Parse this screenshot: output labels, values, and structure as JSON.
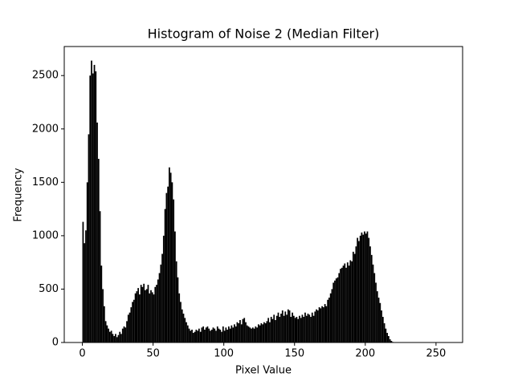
{
  "chart_data": {
    "type": "histogram",
    "title": "Histogram of Noise 2 (Median Filter)",
    "xlabel": "Pixel Value",
    "ylabel": "Frequency",
    "color": "#000000",
    "bins": [
      0,
      1,
      2,
      3,
      4,
      5,
      6,
      7,
      8,
      9,
      10,
      11,
      12,
      13,
      14,
      15,
      16,
      17,
      18,
      19,
      20,
      21,
      22,
      23,
      24,
      25,
      26,
      27,
      28,
      29,
      30,
      31,
      32,
      33,
      34,
      35,
      36,
      37,
      38,
      39,
      40,
      41,
      42,
      43,
      44,
      45,
      46,
      47,
      48,
      49,
      50,
      51,
      52,
      53,
      54,
      55,
      56,
      57,
      58,
      59,
      60,
      61,
      62,
      63,
      64,
      65,
      66,
      67,
      68,
      69,
      70,
      71,
      72,
      73,
      74,
      75,
      76,
      77,
      78,
      79,
      80,
      81,
      82,
      83,
      84,
      85,
      86,
      87,
      88,
      89,
      90,
      91,
      92,
      93,
      94,
      95,
      96,
      97,
      98,
      99,
      100,
      101,
      102,
      103,
      104,
      105,
      106,
      107,
      108,
      109,
      110,
      111,
      112,
      113,
      114,
      115,
      116,
      117,
      118,
      119,
      120,
      121,
      122,
      123,
      124,
      125,
      126,
      127,
      128,
      129,
      130,
      131,
      132,
      133,
      134,
      135,
      136,
      137,
      138,
      139,
      140,
      141,
      142,
      143,
      144,
      145,
      146,
      147,
      148,
      149,
      150,
      151,
      152,
      153,
      154,
      155,
      156,
      157,
      158,
      159,
      160,
      161,
      162,
      163,
      164,
      165,
      166,
      167,
      168,
      169,
      170,
      171,
      172,
      173,
      174,
      175,
      176,
      177,
      178,
      179,
      180,
      181,
      182,
      183,
      184,
      185,
      186,
      187,
      188,
      189,
      190,
      191,
      192,
      193,
      194,
      195,
      196,
      197,
      198,
      199,
      200,
      201,
      202,
      203,
      204,
      205,
      206,
      207,
      208,
      209,
      210,
      211,
      212,
      213,
      214,
      215,
      216,
      217,
      218,
      219,
      220,
      221,
      222,
      223,
      224,
      225,
      226,
      227,
      228,
      229,
      230,
      231,
      232,
      233,
      234,
      235,
      236,
      237,
      238,
      239,
      240,
      241,
      242,
      243,
      244,
      245,
      246,
      247,
      248,
      249,
      250,
      251,
      252,
      253,
      254,
      255,
      256
    ],
    "values": [
      1130,
      930,
      1050,
      1500,
      1950,
      2500,
      2640,
      2520,
      2600,
      2540,
      2060,
      1720,
      1230,
      720,
      500,
      340,
      200,
      160,
      130,
      100,
      110,
      80,
      60,
      80,
      50,
      70,
      100,
      80,
      130,
      150,
      140,
      200,
      260,
      280,
      330,
      380,
      400,
      460,
      480,
      510,
      450,
      540,
      520,
      550,
      490,
      500,
      540,
      460,
      490,
      470,
      450,
      520,
      540,
      590,
      650,
      730,
      830,
      1000,
      1250,
      1400,
      1460,
      1640,
      1590,
      1500,
      1340,
      1040,
      760,
      610,
      460,
      380,
      310,
      270,
      230,
      190,
      160,
      130,
      110,
      120,
      90,
      100,
      120,
      110,
      130,
      100,
      140,
      150,
      120,
      140,
      150,
      130,
      110,
      120,
      140,
      130,
      110,
      150,
      130,
      120,
      100,
      150,
      110,
      140,
      120,
      150,
      130,
      160,
      140,
      170,
      150,
      190,
      180,
      210,
      170,
      220,
      230,
      190,
      160,
      150,
      140,
      130,
      140,
      130,
      150,
      140,
      170,
      160,
      180,
      170,
      190,
      180,
      200,
      230,
      190,
      240,
      220,
      260,
      210,
      250,
      280,
      240,
      270,
      300,
      250,
      290,
      260,
      310,
      300,
      240,
      280,
      250,
      230,
      240,
      220,
      250,
      230,
      260,
      240,
      280,
      250,
      270,
      260,
      240,
      280,
      250,
      290,
      310,
      300,
      330,
      320,
      340,
      330,
      360,
      340,
      400,
      420,
      460,
      500,
      560,
      580,
      600,
      610,
      650,
      690,
      700,
      720,
      740,
      700,
      750,
      720,
      770,
      760,
      850,
      830,
      900,
      980,
      950,
      1000,
      1030,
      1010,
      1040,
      1020,
      1040,
      980,
      900,
      820,
      730,
      650,
      560,
      480,
      420,
      370,
      300,
      240,
      180,
      130,
      90,
      60,
      30,
      15,
      5,
      0,
      0,
      0,
      0,
      0,
      0,
      0,
      0,
      0,
      0,
      0,
      0,
      0,
      0,
      0,
      0,
      0,
      0,
      0,
      0,
      0,
      0,
      0,
      0,
      0,
      0,
      0,
      0,
      0,
      0,
      0,
      0,
      0,
      0,
      0,
      0
    ],
    "xlim": [
      -12.8,
      268.8
    ],
    "ylim": [
      0,
      2772
    ],
    "xticks": [
      0,
      50,
      100,
      150,
      200,
      250
    ],
    "yticks": [
      0,
      500,
      1000,
      1500,
      2000,
      2500
    ]
  }
}
